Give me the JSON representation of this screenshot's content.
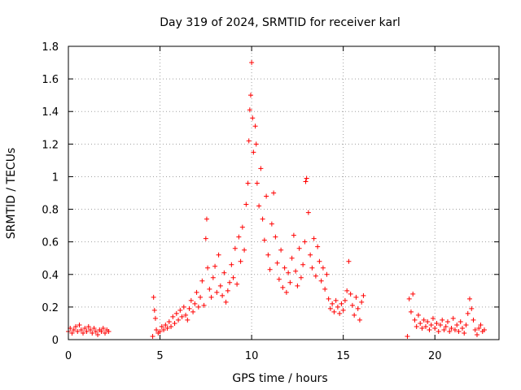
{
  "chart_data": {
    "type": "scatter",
    "title": "Day 319 of 2024, SRMTID for receiver karl",
    "xlabel": "GPS time / hours",
    "ylabel": "SRMTID / TECUs",
    "xlim": [
      0,
      23.5
    ],
    "ylim": [
      0,
      1.8
    ],
    "xticks": [
      0,
      5,
      10,
      15,
      20
    ],
    "xtick_labels": [
      "0",
      "5",
      "10",
      "15",
      "20"
    ],
    "yticks": [
      0,
      0.2,
      0.4,
      0.6,
      0.8,
      1.0,
      1.2,
      1.4,
      1.6,
      1.8
    ],
    "ytick_labels": [
      "0",
      "0.2",
      "0.4",
      "0.6",
      "0.8",
      "1",
      "1.2",
      "1.4",
      "1.6",
      "1.8"
    ],
    "grid": true,
    "marker": "+",
    "series_color": "#ff0000",
    "series": [
      {
        "name": "SRMTID",
        "points": [
          [
            0.0,
            0.05
          ],
          [
            0.1,
            0.07
          ],
          [
            0.2,
            0.04
          ],
          [
            0.3,
            0.06
          ],
          [
            0.4,
            0.08
          ],
          [
            0.5,
            0.05
          ],
          [
            0.6,
            0.09
          ],
          [
            0.7,
            0.06
          ],
          [
            0.8,
            0.04
          ],
          [
            0.9,
            0.07
          ],
          [
            1.0,
            0.05
          ],
          [
            1.1,
            0.08
          ],
          [
            1.2,
            0.06
          ],
          [
            1.3,
            0.04
          ],
          [
            1.4,
            0.07
          ],
          [
            1.5,
            0.05
          ],
          [
            1.6,
            0.03
          ],
          [
            1.7,
            0.06
          ],
          [
            1.8,
            0.05
          ],
          [
            1.9,
            0.07
          ],
          [
            2.0,
            0.04
          ],
          [
            2.1,
            0.06
          ],
          [
            2.2,
            0.05
          ],
          [
            4.6,
            0.02
          ],
          [
            4.65,
            0.26
          ],
          [
            4.7,
            0.18
          ],
          [
            4.75,
            0.13
          ],
          [
            4.8,
            0.06
          ],
          [
            4.9,
            0.04
          ],
          [
            5.0,
            0.05
          ],
          [
            5.1,
            0.08
          ],
          [
            5.2,
            0.06
          ],
          [
            5.3,
            0.09
          ],
          [
            5.4,
            0.07
          ],
          [
            5.5,
            0.11
          ],
          [
            5.6,
            0.08
          ],
          [
            5.7,
            0.14
          ],
          [
            5.8,
            0.1
          ],
          [
            5.9,
            0.16
          ],
          [
            6.0,
            0.12
          ],
          [
            6.1,
            0.18
          ],
          [
            6.2,
            0.14
          ],
          [
            6.3,
            0.2
          ],
          [
            6.4,
            0.15
          ],
          [
            6.5,
            0.12
          ],
          [
            6.6,
            0.19
          ],
          [
            6.7,
            0.24
          ],
          [
            6.8,
            0.17
          ],
          [
            6.9,
            0.22
          ],
          [
            7.0,
            0.29
          ],
          [
            7.1,
            0.2
          ],
          [
            7.2,
            0.26
          ],
          [
            7.3,
            0.36
          ],
          [
            7.4,
            0.21
          ],
          [
            7.5,
            0.62
          ],
          [
            7.55,
            0.74
          ],
          [
            7.6,
            0.44
          ],
          [
            7.7,
            0.31
          ],
          [
            7.8,
            0.26
          ],
          [
            7.9,
            0.38
          ],
          [
            8.0,
            0.45
          ],
          [
            8.1,
            0.29
          ],
          [
            8.2,
            0.52
          ],
          [
            8.3,
            0.33
          ],
          [
            8.4,
            0.27
          ],
          [
            8.5,
            0.41
          ],
          [
            8.6,
            0.23
          ],
          [
            8.7,
            0.3
          ],
          [
            8.8,
            0.35
          ],
          [
            8.9,
            0.46
          ],
          [
            9.0,
            0.38
          ],
          [
            9.1,
            0.56
          ],
          [
            9.2,
            0.34
          ],
          [
            9.3,
            0.63
          ],
          [
            9.4,
            0.48
          ],
          [
            9.5,
            0.69
          ],
          [
            9.6,
            0.55
          ],
          [
            9.7,
            0.83
          ],
          [
            9.8,
            0.96
          ],
          [
            9.85,
            1.22
          ],
          [
            9.9,
            1.41
          ],
          [
            9.95,
            1.5
          ],
          [
            10.0,
            1.7
          ],
          [
            10.05,
            1.36
          ],
          [
            10.1,
            1.15
          ],
          [
            10.2,
            1.31
          ],
          [
            10.25,
            1.2
          ],
          [
            10.3,
            0.96
          ],
          [
            10.4,
            0.82
          ],
          [
            10.5,
            1.05
          ],
          [
            10.6,
            0.74
          ],
          [
            10.7,
            0.61
          ],
          [
            10.8,
            0.88
          ],
          [
            10.9,
            0.52
          ],
          [
            11.0,
            0.43
          ],
          [
            11.1,
            0.71
          ],
          [
            11.2,
            0.9
          ],
          [
            11.3,
            0.63
          ],
          [
            11.4,
            0.47
          ],
          [
            11.5,
            0.37
          ],
          [
            11.6,
            0.55
          ],
          [
            11.7,
            0.32
          ],
          [
            11.8,
            0.44
          ],
          [
            11.9,
            0.29
          ],
          [
            12.0,
            0.41
          ],
          [
            12.1,
            0.35
          ],
          [
            12.2,
            0.5
          ],
          [
            12.3,
            0.64
          ],
          [
            12.4,
            0.42
          ],
          [
            12.5,
            0.33
          ],
          [
            12.6,
            0.56
          ],
          [
            12.7,
            0.38
          ],
          [
            12.8,
            0.46
          ],
          [
            12.9,
            0.6
          ],
          [
            12.95,
            0.97
          ],
          [
            13.0,
            0.99
          ],
          [
            13.1,
            0.78
          ],
          [
            13.2,
            0.52
          ],
          [
            13.3,
            0.44
          ],
          [
            13.4,
            0.62
          ],
          [
            13.5,
            0.39
          ],
          [
            13.6,
            0.57
          ],
          [
            13.7,
            0.48
          ],
          [
            13.8,
            0.36
          ],
          [
            13.9,
            0.44
          ],
          [
            14.0,
            0.31
          ],
          [
            14.1,
            0.4
          ],
          [
            14.2,
            0.25
          ],
          [
            14.3,
            0.19
          ],
          [
            14.4,
            0.22
          ],
          [
            14.5,
            0.17
          ],
          [
            14.6,
            0.24
          ],
          [
            14.7,
            0.2
          ],
          [
            14.8,
            0.16
          ],
          [
            14.9,
            0.22
          ],
          [
            15.0,
            0.18
          ],
          [
            15.1,
            0.24
          ],
          [
            15.2,
            0.3
          ],
          [
            15.3,
            0.48
          ],
          [
            15.4,
            0.28
          ],
          [
            15.5,
            0.21
          ],
          [
            15.6,
            0.15
          ],
          [
            15.7,
            0.26
          ],
          [
            15.8,
            0.19
          ],
          [
            15.9,
            0.12
          ],
          [
            16.0,
            0.23
          ],
          [
            16.1,
            0.27
          ],
          [
            18.5,
            0.02
          ],
          [
            18.6,
            0.25
          ],
          [
            18.7,
            0.17
          ],
          [
            18.8,
            0.28
          ],
          [
            18.9,
            0.12
          ],
          [
            19.0,
            0.08
          ],
          [
            19.1,
            0.15
          ],
          [
            19.2,
            0.1
          ],
          [
            19.3,
            0.07
          ],
          [
            19.4,
            0.12
          ],
          [
            19.5,
            0.08
          ],
          [
            19.6,
            0.11
          ],
          [
            19.7,
            0.06
          ],
          [
            19.8,
            0.09
          ],
          [
            19.9,
            0.13
          ],
          [
            20.0,
            0.07
          ],
          [
            20.1,
            0.1
          ],
          [
            20.2,
            0.05
          ],
          [
            20.3,
            0.09
          ],
          [
            20.4,
            0.12
          ],
          [
            20.5,
            0.06
          ],
          [
            20.6,
            0.08
          ],
          [
            20.7,
            0.11
          ],
          [
            20.8,
            0.05
          ],
          [
            20.9,
            0.07
          ],
          [
            21.0,
            0.13
          ],
          [
            21.1,
            0.06
          ],
          [
            21.2,
            0.09
          ],
          [
            21.3,
            0.05
          ],
          [
            21.4,
            0.11
          ],
          [
            21.5,
            0.07
          ],
          [
            21.6,
            0.04
          ],
          [
            21.7,
            0.09
          ],
          [
            21.8,
            0.16
          ],
          [
            21.9,
            0.25
          ],
          [
            22.0,
            0.19
          ],
          [
            22.1,
            0.12
          ],
          [
            22.2,
            0.06
          ],
          [
            22.3,
            0.03
          ],
          [
            22.4,
            0.07
          ],
          [
            22.5,
            0.09
          ],
          [
            22.6,
            0.05
          ],
          [
            22.7,
            0.06
          ]
        ]
      }
    ]
  }
}
